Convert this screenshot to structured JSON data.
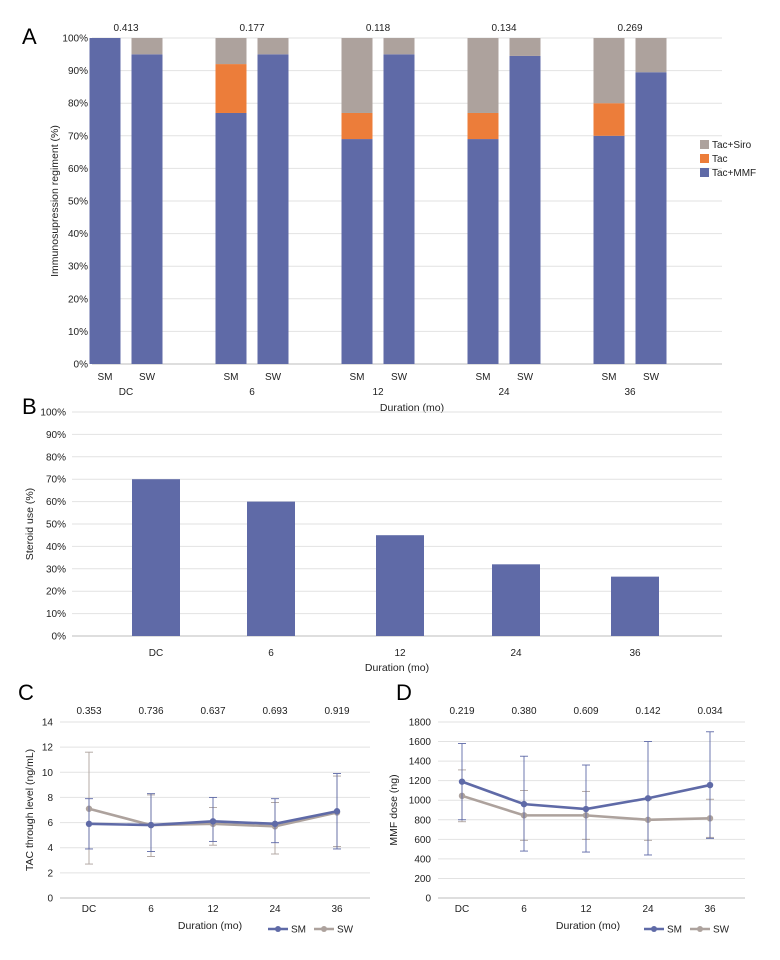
{
  "figure": {
    "panels": [
      {
        "id": "A",
        "letter": "A"
      },
      {
        "id": "B",
        "letter": "B"
      },
      {
        "id": "C",
        "letter": "C"
      },
      {
        "id": "D",
        "letter": "D"
      }
    ]
  },
  "chart_data": [
    {
      "panel": "A",
      "type": "bar",
      "stacked": true,
      "ylabel": "Immunosupression regiment (%)",
      "xlabel": "Duration (mo)",
      "ylim": [
        0,
        100
      ],
      "yticks": [
        "0%",
        "10%",
        "20%",
        "30%",
        "40%",
        "50%",
        "60%",
        "70%",
        "80%",
        "90%",
        "100%"
      ],
      "groups": [
        "DC",
        "6",
        "12",
        "24",
        "36"
      ],
      "bar_labels": [
        "SM",
        "SW"
      ],
      "p_values": [
        "0.413",
        "0.177",
        "0.118",
        "0.134",
        "0.269"
      ],
      "legend_position": "right",
      "series": [
        {
          "name": "Tac+MMF",
          "color": "#5f6aa7",
          "values": [
            [
              100,
              95
            ],
            [
              77,
              95
            ],
            [
              69,
              95
            ],
            [
              69,
              94.5
            ],
            [
              70,
              89.5
            ]
          ]
        },
        {
          "name": "Tac",
          "color": "#ec7d3a",
          "values": [
            [
              0,
              0
            ],
            [
              15,
              0
            ],
            [
              8,
              0
            ],
            [
              8,
              0
            ],
            [
              10,
              0
            ]
          ]
        },
        {
          "name": "Tac+Siro",
          "color": "#ada29d",
          "values": [
            [
              0,
              5
            ],
            [
              8,
              5
            ],
            [
              23,
              5
            ],
            [
              23,
              5.5
            ],
            [
              20,
              10.5
            ]
          ]
        }
      ]
    },
    {
      "panel": "B",
      "type": "bar",
      "ylabel": "Steroid use (%)",
      "xlabel": "Duration (mo)",
      "ylim": [
        0,
        100
      ],
      "yticks": [
        "0%",
        "10%",
        "20%",
        "30%",
        "40%",
        "50%",
        "60%",
        "70%",
        "80%",
        "90%",
        "100%"
      ],
      "categories": [
        "DC",
        "6",
        "12",
        "24",
        "36"
      ],
      "values": [
        70,
        60,
        45,
        32,
        26.5
      ],
      "color": "#5f6aa7"
    },
    {
      "panel": "C",
      "type": "line",
      "ylabel": "TAC through level (ng/mL)",
      "xlabel": "Duration (mo)",
      "ylim": [
        0,
        14
      ],
      "yticks": [
        "0",
        "2",
        "4",
        "6",
        "8",
        "10",
        "12",
        "14"
      ],
      "categories": [
        "DC",
        "6",
        "12",
        "24",
        "36"
      ],
      "p_values": [
        "0.353",
        "0.736",
        "0.637",
        "0.693",
        "0.919"
      ],
      "legend_position": "bottom-right",
      "series": [
        {
          "name": "SM",
          "color": "#5f6aa7",
          "values": [
            5.9,
            5.8,
            6.1,
            5.9,
            6.9
          ],
          "err_low": [
            3.9,
            3.7,
            4.5,
            4.4,
            3.9
          ],
          "err_high": [
            7.9,
            8.3,
            8.0,
            7.9,
            9.9
          ]
        },
        {
          "name": "SW",
          "color": "#ada29d",
          "values": [
            7.1,
            5.8,
            5.9,
            5.7,
            6.8
          ],
          "err_low": [
            2.7,
            3.3,
            4.2,
            3.5,
            4.1
          ],
          "err_high": [
            11.6,
            8.2,
            7.2,
            7.6,
            9.7
          ]
        }
      ]
    },
    {
      "panel": "D",
      "type": "line",
      "ylabel": "MMF dose (ng)",
      "xlabel": "Duration (mo)",
      "ylim": [
        0,
        1800
      ],
      "yticks": [
        "0",
        "200",
        "400",
        "600",
        "800",
        "1000",
        "1200",
        "1400",
        "1600",
        "1800"
      ],
      "categories": [
        "DC",
        "6",
        "12",
        "24",
        "36"
      ],
      "p_values": [
        "0.219",
        "0.380",
        "0.609",
        "0.142",
        "0.034"
      ],
      "legend_position": "bottom-right",
      "series": [
        {
          "name": "SM",
          "color": "#5f6aa7",
          "values": [
            1190,
            960,
            910,
            1020,
            1155
          ],
          "err_low": [
            800,
            480,
            470,
            440,
            610
          ],
          "err_high": [
            1580,
            1450,
            1360,
            1600,
            1700
          ]
        },
        {
          "name": "SW",
          "color": "#ada29d",
          "values": [
            1045,
            845,
            845,
            800,
            815
          ],
          "err_low": [
            780,
            590,
            600,
            590,
            620
          ],
          "err_high": [
            1310,
            1100,
            1090,
            1010,
            1010
          ]
        }
      ]
    }
  ]
}
